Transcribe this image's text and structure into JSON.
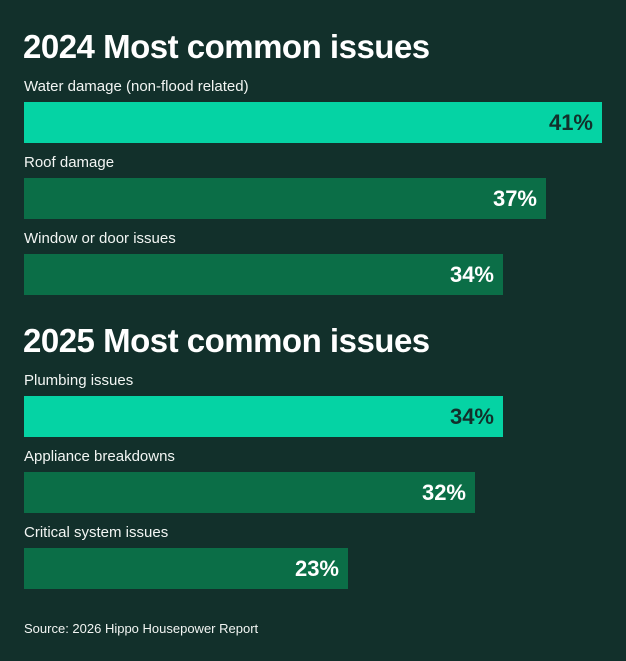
{
  "chart_data": [
    {
      "type": "bar",
      "orientation": "horizontal",
      "title": "2024 Most common issues",
      "categories": [
        "Water damage (non-flood related)",
        "Roof damage",
        "Window or door issues"
      ],
      "values": [
        41,
        37,
        34
      ],
      "value_labels": [
        "41%",
        "37%",
        "34%"
      ],
      "colors": [
        "#05d3a4",
        "#0b6e47",
        "#0b6e47"
      ],
      "label_colors": [
        "#12302b",
        "#ffffff",
        "#ffffff"
      ],
      "xlim": [
        0,
        41
      ],
      "grid": false
    },
    {
      "type": "bar",
      "orientation": "horizontal",
      "title": "2025 Most common issues",
      "categories": [
        "Plumbing issues",
        "Appliance breakdowns",
        "Critical system issues"
      ],
      "values": [
        34,
        32,
        23
      ],
      "value_labels": [
        "34%",
        "32%",
        "23%"
      ],
      "colors": [
        "#05d3a4",
        "#0b6e47",
        "#0b6e47"
      ],
      "label_colors": [
        "#12302b",
        "#ffffff",
        "#ffffff"
      ],
      "xlim": [
        0,
        41
      ],
      "grid": false
    }
  ],
  "source": "Source: 2026 Hippo Housepower Report",
  "background": "#12302b"
}
